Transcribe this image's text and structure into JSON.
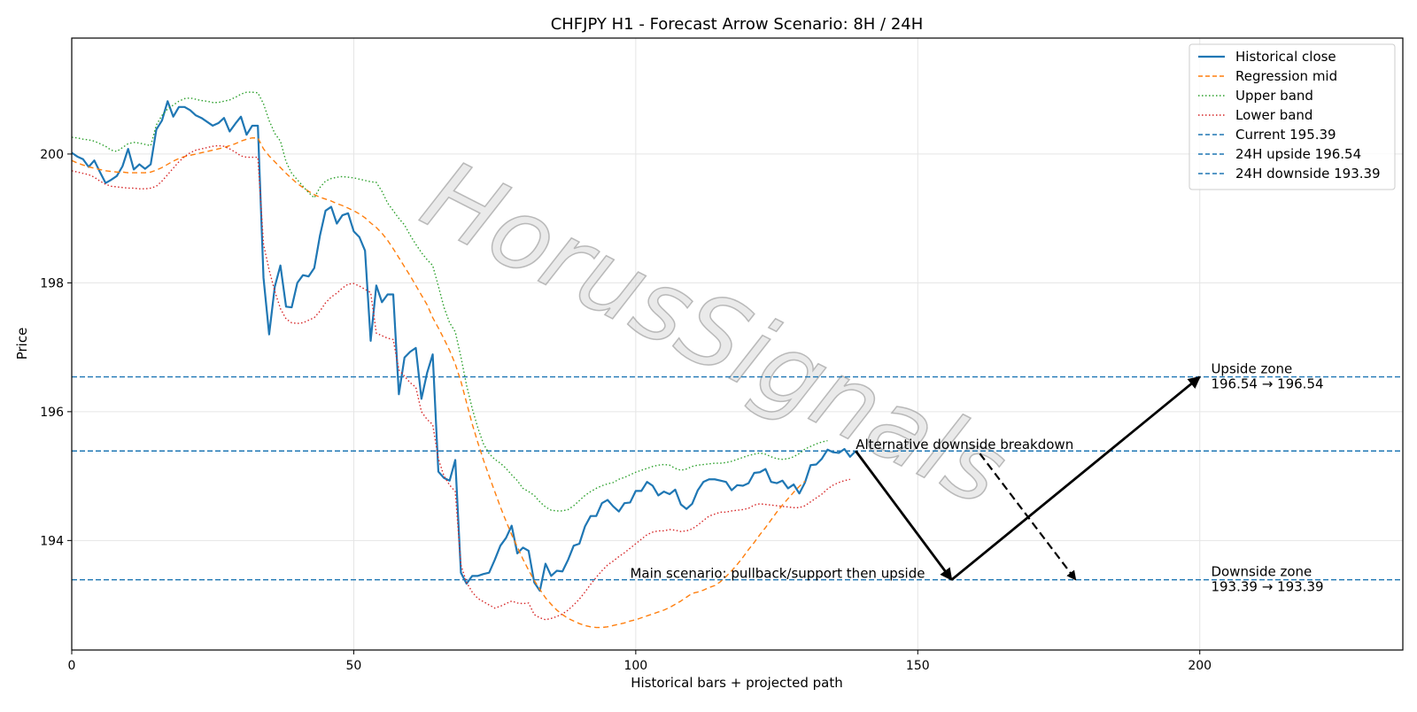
{
  "chart_data": {
    "type": "line",
    "title": "CHFJPY H1 - Forecast Arrow Scenario: 8H / 24H",
    "xlabel": "Historical bars + projected path",
    "ylabel": "Price",
    "xlim": [
      0,
      236
    ],
    "ylim": [
      192.3,
      201.8
    ],
    "x_ticks": [
      0,
      50,
      100,
      150,
      200
    ],
    "y_ticks": [
      194,
      196,
      198,
      200
    ],
    "grid": true,
    "legend_position": "top-right",
    "watermark": "HorusSignals",
    "series": [
      {
        "name": "Historical close",
        "color": "#1f77b4",
        "style": "solid",
        "x_start": 0,
        "values": [
          200.02,
          199.96,
          199.92,
          199.8,
          199.9,
          199.72,
          199.55,
          199.6,
          199.66,
          199.81,
          200.08,
          199.76,
          199.84,
          199.77,
          199.84,
          200.38,
          200.52,
          200.82,
          200.58,
          200.73,
          200.73,
          200.68,
          200.6,
          200.56,
          200.5,
          200.44,
          200.48,
          200.56,
          200.35,
          200.47,
          200.58,
          200.3,
          200.44,
          200.44,
          198.08,
          197.2,
          197.94,
          198.27,
          197.63,
          197.62,
          198.0,
          198.12,
          198.1,
          198.23,
          198.73,
          199.12,
          199.18,
          198.92,
          199.05,
          199.08,
          198.8,
          198.71,
          198.5,
          197.1,
          197.96,
          197.7,
          197.82,
          197.82,
          196.27,
          196.84,
          196.93,
          196.99,
          196.2,
          196.6,
          196.89,
          195.07,
          194.97,
          194.93,
          195.25,
          193.5,
          193.33,
          193.45,
          193.45,
          193.48,
          193.5,
          193.7,
          193.92,
          194.04,
          194.23,
          193.8,
          193.89,
          193.84,
          193.35,
          193.22,
          193.64,
          193.45,
          193.53,
          193.52,
          193.7,
          193.92,
          193.95,
          194.22,
          194.38,
          194.38,
          194.58,
          194.63,
          194.53,
          194.45,
          194.58,
          194.59,
          194.77,
          194.77,
          194.91,
          194.85,
          194.7,
          194.76,
          194.72,
          194.79,
          194.56,
          194.49,
          194.57,
          194.78,
          194.91,
          194.95,
          194.95,
          194.93,
          194.91,
          194.78,
          194.86,
          194.85,
          194.89,
          195.05,
          195.06,
          195.11,
          194.91,
          194.89,
          194.93,
          194.81,
          194.87,
          194.73,
          194.9,
          195.17,
          195.18,
          195.27,
          195.41,
          195.37,
          195.36,
          195.42,
          195.3,
          195.39
        ]
      },
      {
        "name": "Regression mid",
        "color": "#ff7f0e",
        "style": "dashed",
        "x_start": 0,
        "values": [
          199.9,
          199.86,
          199.83,
          199.8,
          199.78,
          199.76,
          199.74,
          199.73,
          199.72,
          199.72,
          199.71,
          199.71,
          199.71,
          199.71,
          199.72,
          199.75,
          199.79,
          199.84,
          199.89,
          199.93,
          199.96,
          199.98,
          200.0,
          200.02,
          200.04,
          200.06,
          200.08,
          200.1,
          200.13,
          200.16,
          200.2,
          200.23,
          200.25,
          200.25,
          200.08,
          199.97,
          199.88,
          199.79,
          199.7,
          199.62,
          199.54,
          199.48,
          199.42,
          199.37,
          199.33,
          199.3,
          199.27,
          199.23,
          199.2,
          199.16,
          199.12,
          199.07,
          199.01,
          198.93,
          198.86,
          198.77,
          198.66,
          198.53,
          198.39,
          198.25,
          198.11,
          197.96,
          197.81,
          197.66,
          197.46,
          197.3,
          197.13,
          196.95,
          196.74,
          196.47,
          196.14,
          195.81,
          195.52,
          195.25,
          195.0,
          194.76,
          194.52,
          194.3,
          194.09,
          193.9,
          193.71,
          193.54,
          193.38,
          193.24,
          193.11,
          193.01,
          192.92,
          192.85,
          192.79,
          192.75,
          192.71,
          192.68,
          192.66,
          192.65,
          192.65,
          192.66,
          192.68,
          192.7,
          192.72,
          192.75,
          192.77,
          192.8,
          192.83,
          192.86,
          192.89,
          192.92,
          192.96,
          193.01,
          193.06,
          193.12,
          193.18,
          193.2,
          193.23,
          193.27,
          193.3,
          193.36,
          193.44,
          193.53,
          193.63,
          193.74,
          193.86,
          193.97,
          194.09,
          194.2,
          194.32,
          194.44,
          194.55,
          194.65,
          194.75,
          194.84,
          194.92
        ]
      },
      {
        "name": "Upper band",
        "color": "#2ca02c",
        "style": "dotted",
        "x_start": 0,
        "values": [
          200.26,
          200.25,
          200.23,
          200.22,
          200.2,
          200.16,
          200.12,
          200.06,
          200.04,
          200.1,
          200.16,
          200.18,
          200.17,
          200.15,
          200.13,
          200.45,
          200.6,
          200.7,
          200.76,
          200.82,
          200.86,
          200.87,
          200.85,
          200.83,
          200.82,
          200.8,
          200.8,
          200.82,
          200.84,
          200.88,
          200.93,
          200.96,
          200.96,
          200.95,
          200.78,
          200.52,
          200.32,
          200.2,
          199.88,
          199.7,
          199.6,
          199.5,
          199.4,
          199.32,
          199.48,
          199.58,
          199.62,
          199.64,
          199.65,
          199.64,
          199.63,
          199.61,
          199.59,
          199.57,
          199.56,
          199.42,
          199.24,
          199.12,
          199.0,
          198.9,
          198.74,
          198.6,
          198.47,
          198.36,
          198.27,
          197.95,
          197.62,
          197.38,
          197.24,
          196.85,
          196.41,
          196.05,
          195.75,
          195.5,
          195.35,
          195.26,
          195.2,
          195.12,
          195.02,
          194.93,
          194.81,
          194.76,
          194.7,
          194.6,
          194.52,
          194.47,
          194.46,
          194.46,
          194.48,
          194.54,
          194.62,
          194.7,
          194.76,
          194.81,
          194.85,
          194.88,
          194.9,
          194.95,
          194.98,
          195.02,
          195.06,
          195.09,
          195.12,
          195.15,
          195.17,
          195.18,
          195.17,
          195.12,
          195.09,
          195.11,
          195.15,
          195.17,
          195.18,
          195.19,
          195.2,
          195.2,
          195.21,
          195.23,
          195.26,
          195.29,
          195.32,
          195.34,
          195.36,
          195.34,
          195.3,
          195.27,
          195.26,
          195.27,
          195.3,
          195.35,
          195.42,
          195.46,
          195.5,
          195.53,
          195.55
        ]
      },
      {
        "name": "Lower band",
        "color": "#d62728",
        "style": "dotted",
        "x_start": 0,
        "values": [
          199.74,
          199.72,
          199.7,
          199.68,
          199.64,
          199.58,
          199.53,
          199.5,
          199.49,
          199.48,
          199.47,
          199.47,
          199.46,
          199.46,
          199.47,
          199.5,
          199.58,
          199.68,
          199.78,
          199.88,
          199.96,
          200.02,
          200.06,
          200.08,
          200.1,
          200.12,
          200.13,
          200.12,
          200.08,
          200.03,
          199.97,
          199.95,
          199.95,
          199.95,
          198.6,
          198.2,
          197.87,
          197.6,
          197.44,
          197.38,
          197.37,
          197.38,
          197.42,
          197.46,
          197.56,
          197.69,
          197.78,
          197.84,
          197.92,
          197.98,
          197.99,
          197.95,
          197.9,
          197.85,
          197.22,
          197.18,
          197.14,
          197.12,
          196.65,
          196.55,
          196.45,
          196.38,
          196.0,
          195.88,
          195.8,
          195.27,
          195.0,
          194.86,
          194.76,
          193.62,
          193.35,
          193.2,
          193.1,
          193.05,
          193.0,
          192.95,
          192.98,
          193.02,
          193.06,
          193.03,
          193.02,
          193.03,
          192.85,
          192.8,
          192.77,
          192.79,
          192.82,
          192.86,
          192.92,
          193.0,
          193.09,
          193.2,
          193.32,
          193.43,
          193.53,
          193.62,
          193.68,
          193.75,
          193.81,
          193.88,
          193.95,
          194.02,
          194.09,
          194.13,
          194.15,
          194.15,
          194.17,
          194.16,
          194.14,
          194.15,
          194.18,
          194.24,
          194.31,
          194.38,
          194.41,
          194.44,
          194.44,
          194.46,
          194.47,
          194.48,
          194.5,
          194.55,
          194.57,
          194.56,
          194.55,
          194.54,
          194.53,
          194.52,
          194.51,
          194.51,
          194.54,
          194.6,
          194.66,
          194.72,
          194.8,
          194.86,
          194.9,
          194.93,
          194.95
        ]
      }
    ],
    "reference_lines": [
      {
        "name": "Current 195.39",
        "value": 195.39,
        "color": "#1f77b4",
        "style": "dashed"
      },
      {
        "name": "24H upside 196.54",
        "value": 196.54,
        "color": "#1f77b4",
        "style": "dashed"
      },
      {
        "name": "24H downside 193.39",
        "value": 193.39,
        "color": "#1f77b4",
        "style": "dashed"
      }
    ],
    "arrows": [
      {
        "from": [
          139,
          195.39
        ],
        "to": [
          156,
          193.39
        ],
        "style": "solid",
        "color": "#000000"
      },
      {
        "from": [
          156,
          193.39
        ],
        "to": [
          200,
          196.54
        ],
        "style": "solid",
        "color": "#000000"
      },
      {
        "from": [
          161,
          195.35
        ],
        "to": [
          178,
          193.39
        ],
        "style": "dashed",
        "color": "#000000"
      }
    ],
    "annotations": [
      {
        "text_lines": [
          "Upside zone",
          "196.54 → 196.54"
        ],
        "x": 202,
        "y": 196.54
      },
      {
        "text_lines": [
          "Downside zone",
          "193.39 → 193.39"
        ],
        "x": 202,
        "y": 193.39
      },
      {
        "text_lines": [
          "Alternative downside breakdown"
        ],
        "x": 139,
        "y": 195.39
      },
      {
        "text_lines": [
          "Main scenario: pullback/support then upside"
        ],
        "x": 99,
        "y": 193.39
      }
    ]
  }
}
